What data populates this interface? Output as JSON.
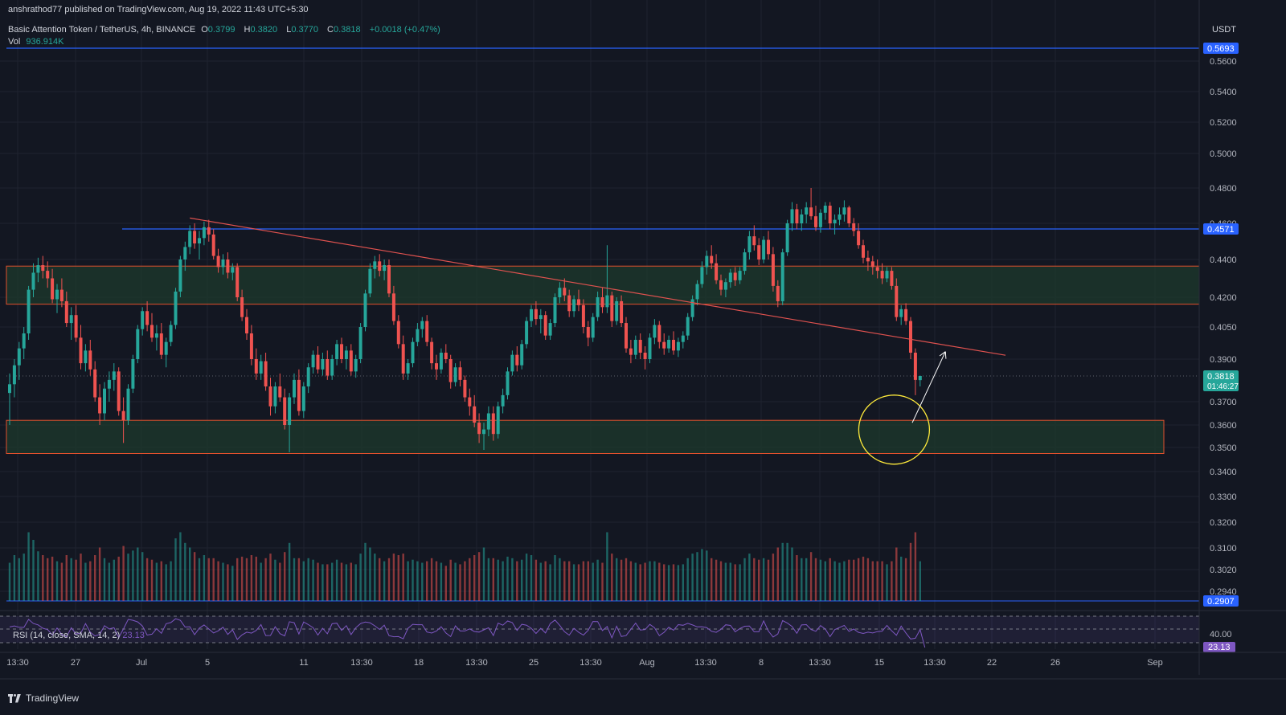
{
  "header": {
    "published": "anshrathod77 published on TradingView.com, Aug 19, 2022 11:43 UTC+5:30",
    "symbol": "Basic Attention Token / TetherUS, 4h, BINANCE",
    "open_label": "O",
    "open": "0.3799",
    "high_label": "H",
    "high": "0.3820",
    "low_label": "L",
    "low": "0.3770",
    "close_label": "C",
    "close": "0.3818",
    "change": "+0.0018 (+0.47%)",
    "vol_label": "Vol",
    "vol_value": "936.914K"
  },
  "rsi_header": {
    "label": "RSI (14, close, SMA, 14, 2)",
    "value": "23.13"
  },
  "footer": {
    "brand": "TradingView"
  },
  "colors": {
    "background": "#131722",
    "up": "#26a69a",
    "down": "#ef5350",
    "zone_fill": "#1e3a2c",
    "zone_border": "#e2502d",
    "hline": "#2962ff",
    "trendline": "#e0524f",
    "circle": "#ffeb3b",
    "arrow": "#ffffff",
    "rsi": "#7e57c2"
  },
  "chart_data": {
    "type": "candlestick",
    "currency": "USDT",
    "y_ticks": [
      "0.5600",
      "0.5400",
      "0.5200",
      "0.5000",
      "0.4800",
      "0.4600",
      "0.4400",
      "0.4200",
      "0.4050",
      "0.3900",
      "0.3700",
      "0.3600",
      "0.3500",
      "0.3400",
      "0.3300",
      "0.3200",
      "0.3100",
      "0.3020",
      "0.2940"
    ],
    "x_ticks": [
      "13:30",
      "27",
      "Jul",
      "5",
      "11",
      "13:30",
      "18",
      "13:30",
      "25",
      "13:30",
      "Aug",
      "13:30",
      "8",
      "13:30",
      "15",
      "13:30",
      "22",
      "26",
      "Sep"
    ],
    "price_labels": [
      {
        "text": "0.5693",
        "price": 0.5693,
        "color": "#2962ff"
      },
      {
        "text": "0.4571",
        "price": 0.4571,
        "color": "#2962ff"
      },
      {
        "text": "0.3818",
        "sub": "01:46:27",
        "price": 0.3818,
        "color": "#26a69a"
      },
      {
        "text": "0.2907",
        "price": 0.2907,
        "color": "#2962ff"
      }
    ],
    "last_price": 0.3818,
    "countdown": "01:46:27",
    "horizontal_lines": [
      0.5693,
      0.4571,
      0.2907
    ],
    "zones": [
      {
        "top": 0.4365,
        "bottom": 0.4165
      },
      {
        "top": 0.362,
        "bottom": 0.3475
      }
    ],
    "trendline": {
      "from": {
        "bar": 38,
        "price": 0.463
      },
      "to": {
        "bar": 210,
        "price": 0.3918
      }
    },
    "arrow": {
      "from": {
        "bar": 190,
        "price": 0.362
      },
      "to": {
        "bar": 197,
        "price": 0.3935
      }
    },
    "circle": {
      "bar": 186,
      "price": 0.359
    },
    "rsi": {
      "value": 23.13,
      "levels": [
        70,
        40,
        30
      ],
      "tick_label": "40.00"
    },
    "candles": [
      [
        0.374,
        0.383,
        0.36,
        0.378,
        500
      ],
      [
        0.378,
        0.39,
        0.372,
        0.387,
        600
      ],
      [
        0.387,
        0.398,
        0.38,
        0.395,
        560
      ],
      [
        0.395,
        0.405,
        0.39,
        0.402,
        620
      ],
      [
        0.402,
        0.426,
        0.399,
        0.424,
        900
      ],
      [
        0.424,
        0.438,
        0.42,
        0.433,
        800
      ],
      [
        0.433,
        0.441,
        0.428,
        0.437,
        650
      ],
      [
        0.437,
        0.442,
        0.43,
        0.434,
        600
      ],
      [
        0.434,
        0.439,
        0.425,
        0.43,
        560
      ],
      [
        0.43,
        0.435,
        0.417,
        0.419,
        580
      ],
      [
        0.419,
        0.427,
        0.412,
        0.424,
        520
      ],
      [
        0.424,
        0.43,
        0.415,
        0.418,
        500
      ],
      [
        0.418,
        0.423,
        0.405,
        0.407,
        600
      ],
      [
        0.407,
        0.415,
        0.399,
        0.411,
        560
      ],
      [
        0.411,
        0.416,
        0.398,
        0.4,
        540
      ],
      [
        0.4,
        0.406,
        0.385,
        0.388,
        620
      ],
      [
        0.388,
        0.397,
        0.384,
        0.394,
        500
      ],
      [
        0.394,
        0.399,
        0.382,
        0.385,
        520
      ],
      [
        0.385,
        0.389,
        0.37,
        0.372,
        600
      ],
      [
        0.372,
        0.378,
        0.36,
        0.365,
        700
      ],
      [
        0.365,
        0.379,
        0.362,
        0.376,
        560
      ],
      [
        0.376,
        0.384,
        0.37,
        0.38,
        500
      ],
      [
        0.38,
        0.388,
        0.375,
        0.384,
        540
      ],
      [
        0.384,
        0.386,
        0.364,
        0.366,
        580
      ],
      [
        0.366,
        0.372,
        0.352,
        0.362,
        720
      ],
      [
        0.362,
        0.378,
        0.36,
        0.376,
        620
      ],
      [
        0.376,
        0.392,
        0.374,
        0.39,
        660
      ],
      [
        0.39,
        0.406,
        0.388,
        0.404,
        700
      ],
      [
        0.404,
        0.415,
        0.401,
        0.413,
        640
      ],
      [
        0.413,
        0.418,
        0.403,
        0.406,
        560
      ],
      [
        0.406,
        0.412,
        0.398,
        0.4,
        540
      ],
      [
        0.4,
        0.406,
        0.394,
        0.402,
        500
      ],
      [
        0.402,
        0.407,
        0.39,
        0.392,
        520
      ],
      [
        0.392,
        0.4,
        0.386,
        0.398,
        480
      ],
      [
        0.398,
        0.408,
        0.396,
        0.406,
        520
      ],
      [
        0.406,
        0.425,
        0.404,
        0.423,
        820
      ],
      [
        0.423,
        0.442,
        0.42,
        0.44,
        900
      ],
      [
        0.44,
        0.45,
        0.434,
        0.447,
        760
      ],
      [
        0.447,
        0.459,
        0.443,
        0.456,
        700
      ],
      [
        0.456,
        0.46,
        0.446,
        0.449,
        640
      ],
      [
        0.449,
        0.456,
        0.44,
        0.452,
        560
      ],
      [
        0.452,
        0.461,
        0.448,
        0.458,
        600
      ],
      [
        0.458,
        0.462,
        0.45,
        0.454,
        560
      ],
      [
        0.454,
        0.457,
        0.44,
        0.442,
        560
      ],
      [
        0.442,
        0.446,
        0.433,
        0.436,
        520
      ],
      [
        0.436,
        0.443,
        0.432,
        0.44,
        500
      ],
      [
        0.44,
        0.444,
        0.43,
        0.433,
        480
      ],
      [
        0.433,
        0.438,
        0.429,
        0.436,
        460
      ],
      [
        0.436,
        0.438,
        0.418,
        0.42,
        560
      ],
      [
        0.42,
        0.424,
        0.408,
        0.41,
        580
      ],
      [
        0.41,
        0.414,
        0.399,
        0.402,
        560
      ],
      [
        0.402,
        0.406,
        0.387,
        0.39,
        600
      ],
      [
        0.39,
        0.395,
        0.38,
        0.383,
        580
      ],
      [
        0.383,
        0.392,
        0.38,
        0.389,
        500
      ],
      [
        0.389,
        0.393,
        0.375,
        0.377,
        560
      ],
      [
        0.377,
        0.381,
        0.364,
        0.368,
        620
      ],
      [
        0.368,
        0.379,
        0.365,
        0.377,
        540
      ],
      [
        0.377,
        0.383,
        0.37,
        0.372,
        500
      ],
      [
        0.372,
        0.376,
        0.358,
        0.36,
        640
      ],
      [
        0.36,
        0.374,
        0.348,
        0.372,
        760
      ],
      [
        0.372,
        0.383,
        0.369,
        0.38,
        560
      ],
      [
        0.38,
        0.385,
        0.364,
        0.366,
        560
      ],
      [
        0.366,
        0.379,
        0.363,
        0.377,
        520
      ],
      [
        0.377,
        0.388,
        0.374,
        0.386,
        560
      ],
      [
        0.386,
        0.394,
        0.383,
        0.392,
        540
      ],
      [
        0.392,
        0.396,
        0.383,
        0.385,
        500
      ],
      [
        0.385,
        0.393,
        0.382,
        0.39,
        480
      ],
      [
        0.39,
        0.394,
        0.38,
        0.382,
        480
      ],
      [
        0.382,
        0.392,
        0.38,
        0.39,
        500
      ],
      [
        0.39,
        0.399,
        0.387,
        0.397,
        540
      ],
      [
        0.397,
        0.4,
        0.388,
        0.39,
        500
      ],
      [
        0.39,
        0.396,
        0.385,
        0.394,
        480
      ],
      [
        0.394,
        0.397,
        0.382,
        0.384,
        500
      ],
      [
        0.384,
        0.392,
        0.381,
        0.39,
        480
      ],
      [
        0.39,
        0.407,
        0.388,
        0.405,
        620
      ],
      [
        0.405,
        0.424,
        0.403,
        0.422,
        760
      ],
      [
        0.422,
        0.438,
        0.42,
        0.435,
        700
      ],
      [
        0.435,
        0.442,
        0.43,
        0.439,
        620
      ],
      [
        0.439,
        0.443,
        0.431,
        0.434,
        560
      ],
      [
        0.434,
        0.44,
        0.429,
        0.437,
        520
      ],
      [
        0.437,
        0.44,
        0.42,
        0.422,
        560
      ],
      [
        0.422,
        0.426,
        0.406,
        0.408,
        620
      ],
      [
        0.408,
        0.411,
        0.395,
        0.397,
        600
      ],
      [
        0.397,
        0.401,
        0.38,
        0.383,
        620
      ],
      [
        0.383,
        0.39,
        0.38,
        0.388,
        520
      ],
      [
        0.388,
        0.4,
        0.386,
        0.398,
        540
      ],
      [
        0.398,
        0.407,
        0.396,
        0.404,
        520
      ],
      [
        0.404,
        0.41,
        0.4,
        0.408,
        500
      ],
      [
        0.408,
        0.411,
        0.396,
        0.398,
        520
      ],
      [
        0.398,
        0.4,
        0.385,
        0.388,
        560
      ],
      [
        0.388,
        0.392,
        0.38,
        0.385,
        520
      ],
      [
        0.385,
        0.395,
        0.383,
        0.393,
        500
      ],
      [
        0.393,
        0.397,
        0.388,
        0.39,
        460
      ],
      [
        0.39,
        0.392,
        0.376,
        0.379,
        540
      ],
      [
        0.379,
        0.388,
        0.377,
        0.386,
        500
      ],
      [
        0.386,
        0.389,
        0.377,
        0.38,
        480
      ],
      [
        0.38,
        0.382,
        0.37,
        0.372,
        520
      ],
      [
        0.372,
        0.376,
        0.364,
        0.368,
        560
      ],
      [
        0.368,
        0.373,
        0.359,
        0.361,
        600
      ],
      [
        0.361,
        0.365,
        0.352,
        0.356,
        640
      ],
      [
        0.356,
        0.361,
        0.349,
        0.358,
        700
      ],
      [
        0.358,
        0.368,
        0.355,
        0.365,
        560
      ],
      [
        0.365,
        0.368,
        0.353,
        0.356,
        560
      ],
      [
        0.356,
        0.37,
        0.354,
        0.368,
        540
      ],
      [
        0.368,
        0.376,
        0.365,
        0.373,
        520
      ],
      [
        0.373,
        0.386,
        0.371,
        0.384,
        580
      ],
      [
        0.384,
        0.394,
        0.382,
        0.392,
        560
      ],
      [
        0.392,
        0.396,
        0.384,
        0.387,
        520
      ],
      [
        0.387,
        0.399,
        0.385,
        0.397,
        540
      ],
      [
        0.397,
        0.41,
        0.395,
        0.408,
        620
      ],
      [
        0.408,
        0.416,
        0.405,
        0.414,
        600
      ],
      [
        0.414,
        0.418,
        0.406,
        0.409,
        540
      ],
      [
        0.409,
        0.414,
        0.402,
        0.411,
        500
      ],
      [
        0.411,
        0.413,
        0.399,
        0.401,
        520
      ],
      [
        0.401,
        0.409,
        0.399,
        0.407,
        480
      ],
      [
        0.407,
        0.422,
        0.405,
        0.42,
        600
      ],
      [
        0.42,
        0.428,
        0.417,
        0.425,
        560
      ],
      [
        0.425,
        0.43,
        0.418,
        0.421,
        520
      ],
      [
        0.421,
        0.424,
        0.41,
        0.413,
        520
      ],
      [
        0.413,
        0.421,
        0.41,
        0.419,
        480
      ],
      [
        0.419,
        0.424,
        0.413,
        0.416,
        480
      ],
      [
        0.416,
        0.419,
        0.402,
        0.405,
        520
      ],
      [
        0.405,
        0.408,
        0.396,
        0.4,
        520
      ],
      [
        0.4,
        0.412,
        0.398,
        0.41,
        500
      ],
      [
        0.41,
        0.423,
        0.408,
        0.42,
        540
      ],
      [
        0.42,
        0.425,
        0.412,
        0.415,
        500
      ],
      [
        0.415,
        0.448,
        0.412,
        0.421,
        900
      ],
      [
        0.421,
        0.423,
        0.405,
        0.408,
        620
      ],
      [
        0.408,
        0.42,
        0.406,
        0.418,
        560
      ],
      [
        0.418,
        0.421,
        0.405,
        0.407,
        540
      ],
      [
        0.407,
        0.41,
        0.393,
        0.395,
        560
      ],
      [
        0.395,
        0.399,
        0.388,
        0.392,
        520
      ],
      [
        0.392,
        0.401,
        0.39,
        0.399,
        500
      ],
      [
        0.399,
        0.402,
        0.39,
        0.393,
        480
      ],
      [
        0.393,
        0.396,
        0.385,
        0.39,
        500
      ],
      [
        0.39,
        0.402,
        0.388,
        0.4,
        520
      ],
      [
        0.4,
        0.409,
        0.397,
        0.406,
        520
      ],
      [
        0.406,
        0.408,
        0.395,
        0.398,
        500
      ],
      [
        0.398,
        0.402,
        0.392,
        0.395,
        480
      ],
      [
        0.395,
        0.401,
        0.393,
        0.399,
        470
      ],
      [
        0.399,
        0.403,
        0.392,
        0.394,
        480
      ],
      [
        0.394,
        0.4,
        0.391,
        0.398,
        470
      ],
      [
        0.398,
        0.403,
        0.395,
        0.401,
        480
      ],
      [
        0.401,
        0.412,
        0.399,
        0.41,
        560
      ],
      [
        0.41,
        0.421,
        0.408,
        0.419,
        620
      ],
      [
        0.419,
        0.429,
        0.416,
        0.427,
        640
      ],
      [
        0.427,
        0.439,
        0.425,
        0.436,
        680
      ],
      [
        0.436,
        0.445,
        0.432,
        0.442,
        660
      ],
      [
        0.442,
        0.448,
        0.435,
        0.438,
        560
      ],
      [
        0.438,
        0.443,
        0.427,
        0.429,
        540
      ],
      [
        0.429,
        0.432,
        0.421,
        0.424,
        520
      ],
      [
        0.424,
        0.43,
        0.42,
        0.428,
        500
      ],
      [
        0.428,
        0.435,
        0.425,
        0.433,
        500
      ],
      [
        0.433,
        0.436,
        0.426,
        0.429,
        480
      ],
      [
        0.429,
        0.436,
        0.427,
        0.434,
        480
      ],
      [
        0.434,
        0.446,
        0.432,
        0.444,
        560
      ],
      [
        0.444,
        0.456,
        0.44,
        0.453,
        620
      ],
      [
        0.453,
        0.459,
        0.445,
        0.448,
        560
      ],
      [
        0.448,
        0.452,
        0.437,
        0.44,
        540
      ],
      [
        0.44,
        0.453,
        0.438,
        0.451,
        560
      ],
      [
        0.451,
        0.456,
        0.44,
        0.443,
        540
      ],
      [
        0.443,
        0.447,
        0.423,
        0.426,
        620
      ],
      [
        0.426,
        0.429,
        0.415,
        0.418,
        700
      ],
      [
        0.418,
        0.446,
        0.416,
        0.444,
        760
      ],
      [
        0.444,
        0.462,
        0.442,
        0.46,
        760
      ],
      [
        0.46,
        0.472,
        0.456,
        0.468,
        700
      ],
      [
        0.468,
        0.471,
        0.457,
        0.46,
        600
      ],
      [
        0.46,
        0.468,
        0.456,
        0.465,
        560
      ],
      [
        0.465,
        0.472,
        0.46,
        0.469,
        560
      ],
      [
        0.469,
        0.48,
        0.462,
        0.464,
        640
      ],
      [
        0.464,
        0.47,
        0.456,
        0.458,
        560
      ],
      [
        0.458,
        0.468,
        0.455,
        0.466,
        540
      ],
      [
        0.466,
        0.472,
        0.462,
        0.47,
        520
      ],
      [
        0.47,
        0.472,
        0.457,
        0.46,
        560
      ],
      [
        0.46,
        0.465,
        0.454,
        0.462,
        520
      ],
      [
        0.462,
        0.469,
        0.459,
        0.465,
        500
      ],
      [
        0.465,
        0.473,
        0.461,
        0.469,
        520
      ],
      [
        0.469,
        0.47,
        0.458,
        0.46,
        540
      ],
      [
        0.46,
        0.463,
        0.453,
        0.456,
        540
      ],
      [
        0.456,
        0.46,
        0.446,
        0.448,
        560
      ],
      [
        0.448,
        0.451,
        0.438,
        0.441,
        580
      ],
      [
        0.441,
        0.445,
        0.434,
        0.439,
        560
      ],
      [
        0.439,
        0.442,
        0.432,
        0.436,
        520
      ],
      [
        0.436,
        0.44,
        0.43,
        0.434,
        520
      ],
      [
        0.434,
        0.438,
        0.427,
        0.43,
        520
      ],
      [
        0.43,
        0.436,
        0.428,
        0.434,
        480
      ],
      [
        0.434,
        0.436,
        0.424,
        0.426,
        520
      ],
      [
        0.426,
        0.43,
        0.408,
        0.41,
        700
      ],
      [
        0.41,
        0.416,
        0.406,
        0.414,
        580
      ],
      [
        0.414,
        0.417,
        0.406,
        0.408,
        560
      ],
      [
        0.408,
        0.41,
        0.39,
        0.393,
        760
      ],
      [
        0.393,
        0.395,
        0.373,
        0.38,
        900
      ],
      [
        0.3799,
        0.382,
        0.377,
        0.3818,
        520
      ]
    ]
  }
}
